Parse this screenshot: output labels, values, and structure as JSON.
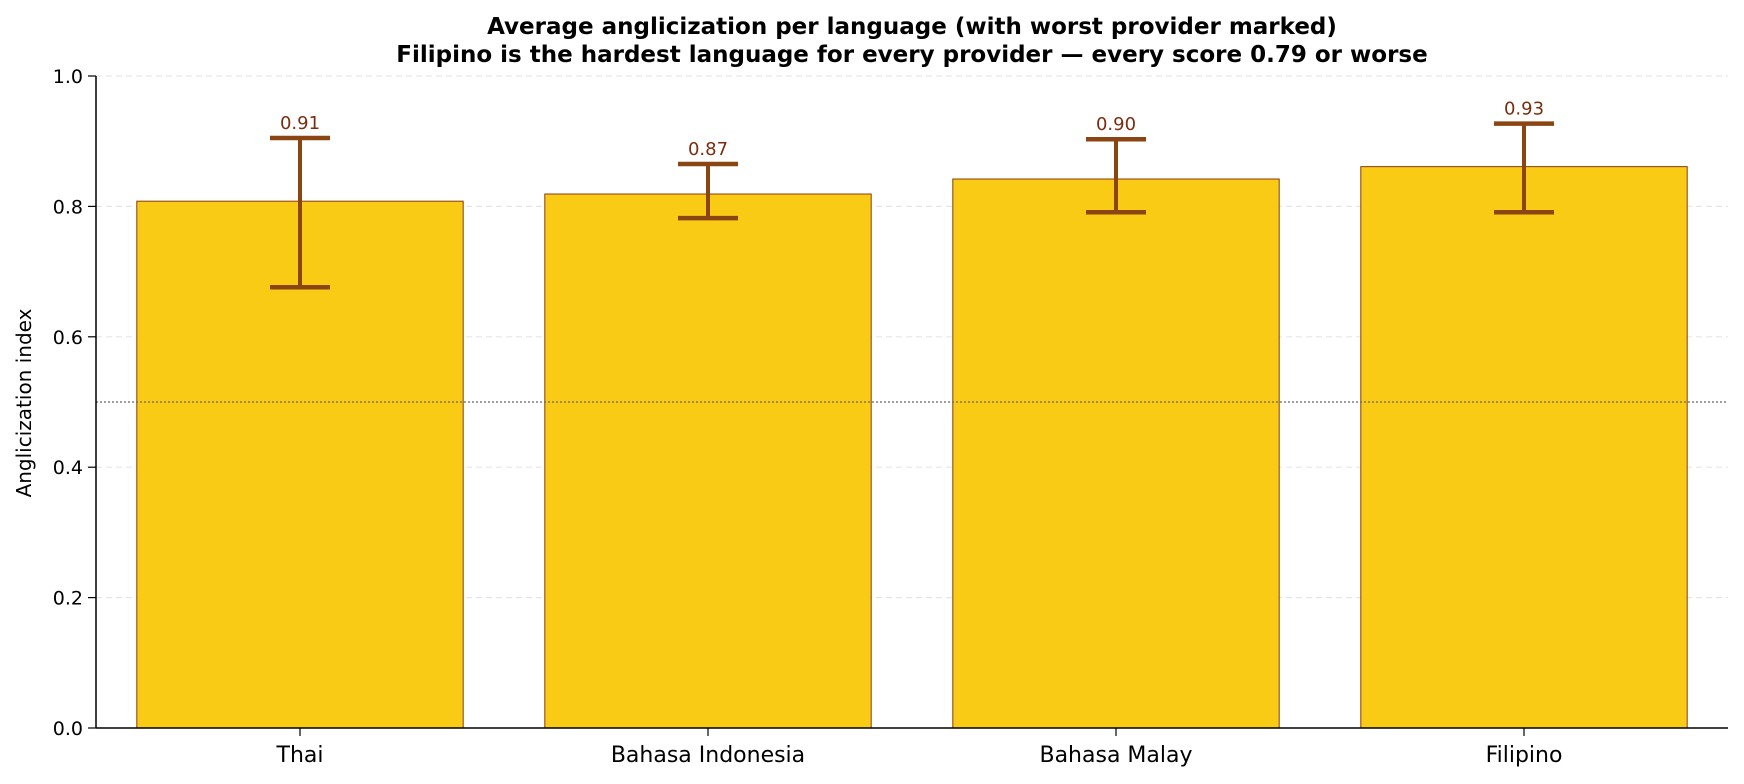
{
  "chart_data": {
    "type": "bar",
    "title": "Average anglicization per language (with worst provider marked)",
    "subtitle": "Filipino is the hardest language for every provider — every score 0.79 or worse",
    "xlabel": "",
    "ylabel": "Anglicization index",
    "ylim": [
      0,
      1.0
    ],
    "yticks": [
      0.0,
      0.2,
      0.4,
      0.6,
      0.8,
      1.0
    ],
    "ytick_labels": [
      "0.0",
      "0.2",
      "0.4",
      "0.6",
      "0.8",
      "1.0"
    ],
    "grid": "horizontal dashed",
    "reference_line": 0.5,
    "categories": [
      "Thai",
      "Bahasa Indonesia",
      "Bahasa Malay",
      "Filipino"
    ],
    "series": [
      {
        "values": [
          0.808,
          0.819,
          0.842,
          0.861
        ],
        "error_low": [
          0.676,
          0.782,
          0.791,
          0.791
        ],
        "error_high": [
          0.905,
          0.865,
          0.903,
          0.927
        ],
        "labels": [
          "0.91",
          "0.87",
          "0.90",
          "0.93"
        ]
      }
    ],
    "colors": {
      "bar_fill": "#f9cb15",
      "bar_edge": "#8b3a0f",
      "error_bar": "#8b4513",
      "label": "#7a2e0e",
      "grid": "#e6e6e6",
      "reference": "#666666"
    }
  }
}
